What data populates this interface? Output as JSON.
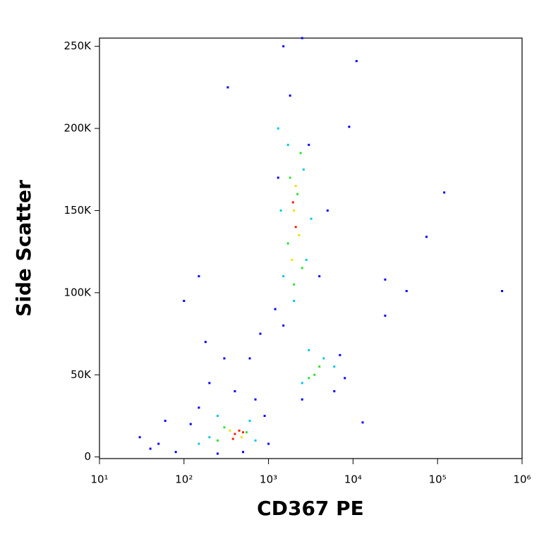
{
  "chart_data": {
    "type": "scatter",
    "x_label": "CD367 PE",
    "y_label": "Side Scatter",
    "xscale": "log",
    "xlim": [
      10,
      1000000
    ],
    "xticks": [
      {
        "value": 10,
        "label": "10¹"
      },
      {
        "value": 100,
        "label": "10²"
      },
      {
        "value": 1000,
        "label": "10³"
      },
      {
        "value": 10000,
        "label": "10⁴"
      },
      {
        "value": 100000,
        "label": "10⁵"
      },
      {
        "value": 1000000,
        "label": "10⁶"
      }
    ],
    "ylim": [
      -1000,
      255000
    ],
    "yticks": [
      0,
      {
        "value": 50000,
        "label": "50K"
      },
      {
        "value": 100000,
        "label": "100K"
      },
      {
        "value": 150000,
        "label": "150K"
      },
      {
        "value": 200000,
        "label": "200K"
      },
      {
        "value": 250000,
        "label": "250K"
      }
    ],
    "series": [
      {
        "color": "#0000ff",
        "x": [
          50,
          80,
          120,
          150,
          30,
          200,
          100,
          150,
          300,
          600,
          700,
          250,
          500,
          1000,
          900,
          60,
          40,
          400,
          180,
          800,
          1200,
          1500,
          2500,
          1800,
          3000,
          1300,
          5000,
          4000,
          1500,
          7000,
          8000,
          2500,
          6000,
          120000,
          580000,
          74000,
          43000,
          24000,
          24000,
          330,
          11000,
          13000,
          9000
        ],
        "y": [
          8000,
          3000,
          20000,
          30000,
          12000,
          45000,
          95000,
          110000,
          60000,
          60000,
          35000,
          2000,
          3000,
          8000,
          25000,
          22000,
          5000,
          40000,
          70000,
          75000,
          90000,
          250000,
          255000,
          220000,
          190000,
          170000,
          150000,
          110000,
          80000,
          62000,
          48000,
          35000,
          40000,
          161000,
          101000,
          134000,
          101000,
          108000,
          86000,
          225000,
          241000,
          21000,
          201000
        ]
      },
      {
        "color": "#00c8e6",
        "x": [
          1400,
          1700,
          2600,
          1500,
          2800,
          2000,
          2500,
          4500,
          6000,
          3000,
          200,
          600,
          700,
          250,
          150,
          1300,
          3200
        ],
        "y": [
          150000,
          190000,
          175000,
          110000,
          120000,
          95000,
          45000,
          60000,
          55000,
          65000,
          12000,
          22000,
          10000,
          25000,
          8000,
          200000,
          145000
        ]
      },
      {
        "color": "#30e030",
        "x": [
          1800,
          2200,
          1700,
          2500,
          2000,
          2400,
          3500,
          4000,
          300,
          550,
          250,
          3000
        ],
        "y": [
          170000,
          160000,
          130000,
          115000,
          105000,
          185000,
          50000,
          55000,
          18000,
          15000,
          10000,
          48000
        ]
      },
      {
        "color": "#f0e000",
        "x": [
          2000,
          2300,
          1900,
          2100,
          350,
          480
        ],
        "y": [
          150000,
          135000,
          120000,
          165000,
          16000,
          12000
        ]
      },
      {
        "color": "#ff2000",
        "x": [
          2100,
          1950,
          400,
          450,
          380,
          500
        ],
        "y": [
          140000,
          155000,
          14000,
          16000,
          11000,
          15000
        ]
      }
    ]
  }
}
